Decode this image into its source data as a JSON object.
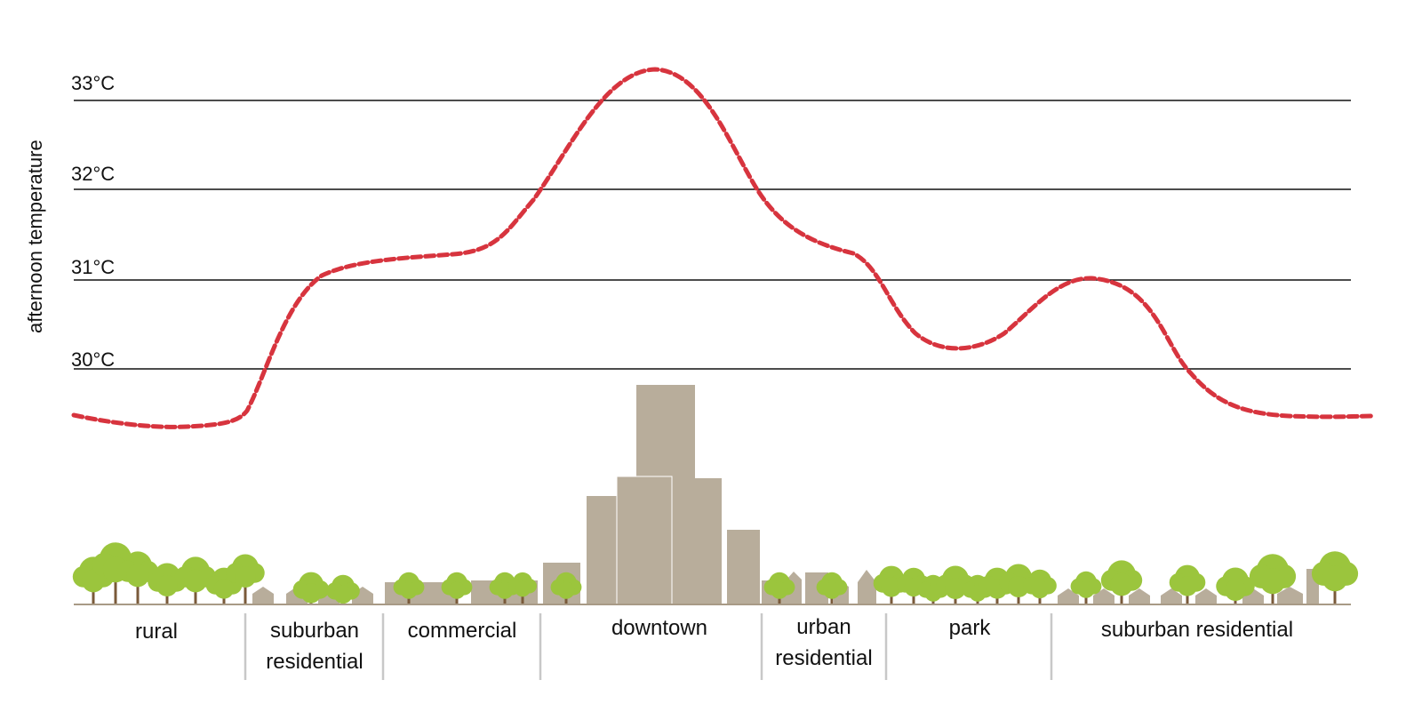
{
  "axis": {
    "title": "afternoon temperature",
    "unit": "°C",
    "ticks": [
      "33°C",
      "32°C",
      "31°C",
      "30°C"
    ]
  },
  "zones": [
    {
      "id": "rural",
      "lines": [
        "rural"
      ]
    },
    {
      "id": "suburban-residential-1",
      "lines": [
        "suburban",
        "residential"
      ]
    },
    {
      "id": "commercial",
      "lines": [
        "commercial"
      ]
    },
    {
      "id": "downtown",
      "lines": [
        "downtown"
      ]
    },
    {
      "id": "urban-residential",
      "lines": [
        "urban",
        "residential"
      ]
    },
    {
      "id": "park",
      "lines": [
        "park"
      ]
    },
    {
      "id": "suburban-residential-2",
      "lines": [
        "suburban residential"
      ]
    }
  ],
  "temperature_profile": {
    "description_key": "approximate afternoon temperature across the transect (°C)",
    "x_positions": [
      "start",
      "rural",
      "rural-edge",
      "suburban",
      "commercial",
      "downtown",
      "downtown-peak",
      "urban-residential",
      "park",
      "suburban-peak",
      "suburban-residential",
      "end"
    ],
    "values": [
      29.48,
      29.37,
      29.5,
      31.05,
      31.4,
      33.0,
      33.37,
      31.35,
      30.2,
      31.03,
      29.5,
      29.47
    ]
  },
  "colors": {
    "curve": "#d7343e",
    "building": "#b8ad9b",
    "tree_foliage": "#9bc53d",
    "tree_trunk": "#7a5a3a",
    "divider": "#c8c8c8"
  }
}
